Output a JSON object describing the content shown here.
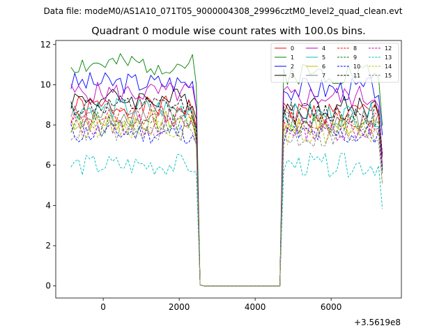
{
  "suptitle": "Data file: modeM0/AS1A10_071T05_9000004308_29996cztM0_level2_quad_clean.evt",
  "chart_data": {
    "type": "line",
    "title": "Quadrant 0 module wise count rates with 100.0s bins.",
    "xlabel": "",
    "ylabel": "",
    "x_offset_label": "+3.5619e8",
    "xlim": [
      -1250,
      7850
    ],
    "ylim": [
      -0.6,
      12.2
    ],
    "xticks": [
      0,
      2000,
      4000,
      6000
    ],
    "yticks": [
      0,
      2,
      4,
      6,
      8,
      10,
      12
    ],
    "grid": false,
    "legend_position": "top-right",
    "segments": [
      {
        "x_start": -850,
        "x_end": 2350,
        "step": 100
      },
      {
        "x_start": 2450,
        "x_end": 2550,
        "step": 100,
        "ramp": "down"
      },
      {
        "x_start": 2550,
        "x_end": 4650,
        "step": 100,
        "zero": true
      },
      {
        "x_start": 4650,
        "x_end": 4750,
        "step": 100,
        "ramp": "up"
      },
      {
        "x_start": 4750,
        "x_end": 7250,
        "step": 100
      },
      {
        "x_start": 7350,
        "x_end": 7350,
        "step": 100,
        "ramp": "tail"
      }
    ],
    "series": [
      {
        "name": "0",
        "color": "#ff0000",
        "dashed": false,
        "level1": 8.9,
        "level2": 8.6,
        "seed": 1
      },
      {
        "name": "1",
        "color": "#008000",
        "dashed": false,
        "level1": 11.0,
        "level2": 10.6,
        "seed": 2
      },
      {
        "name": "2",
        "color": "#0000ff",
        "dashed": false,
        "level1": 10.1,
        "level2": 9.8,
        "seed": 3
      },
      {
        "name": "3",
        "color": "#000000",
        "dashed": false,
        "level1": 9.3,
        "level2": 8.9,
        "seed": 4
      },
      {
        "name": "4",
        "color": "#bf00bf",
        "dashed": false,
        "level1": 9.6,
        "level2": 9.4,
        "seed": 5
      },
      {
        "name": "5",
        "color": "#00bfbf",
        "dashed": false,
        "level1": 8.8,
        "level2": 8.5,
        "seed": 6
      },
      {
        "name": "6",
        "color": "#bfbf00",
        "dashed": false,
        "level1": 8.2,
        "level2": 8.0,
        "seed": 7
      },
      {
        "name": "7",
        "color": "#808080",
        "dashed": false,
        "level1": 8.5,
        "level2": 8.2,
        "seed": 8
      },
      {
        "name": "8",
        "color": "#ff0000",
        "dashed": true,
        "level1": 8.4,
        "level2": 8.1,
        "seed": 9
      },
      {
        "name": "9",
        "color": "#008000",
        "dashed": true,
        "level1": 8.1,
        "level2": 7.9,
        "seed": 10
      },
      {
        "name": "10",
        "color": "#0000ff",
        "dashed": true,
        "level1": 7.6,
        "level2": 7.5,
        "seed": 11
      },
      {
        "name": "11",
        "color": "#000000",
        "dashed": true,
        "level1": 8.9,
        "level2": 8.6,
        "seed": 12
      },
      {
        "name": "12",
        "color": "#bf00bf",
        "dashed": true,
        "level1": 8.0,
        "level2": 7.8,
        "seed": 13
      },
      {
        "name": "13",
        "color": "#00bfbf",
        "dashed": true,
        "level1": 6.0,
        "level2": 6.0,
        "seed": 14
      },
      {
        "name": "14",
        "color": "#bfbf00",
        "dashed": true,
        "level1": 7.9,
        "level2": 7.6,
        "seed": 15
      },
      {
        "name": "15",
        "color": "#808080",
        "dashed": true,
        "level1": 7.7,
        "level2": 7.4,
        "seed": 16
      }
    ]
  }
}
